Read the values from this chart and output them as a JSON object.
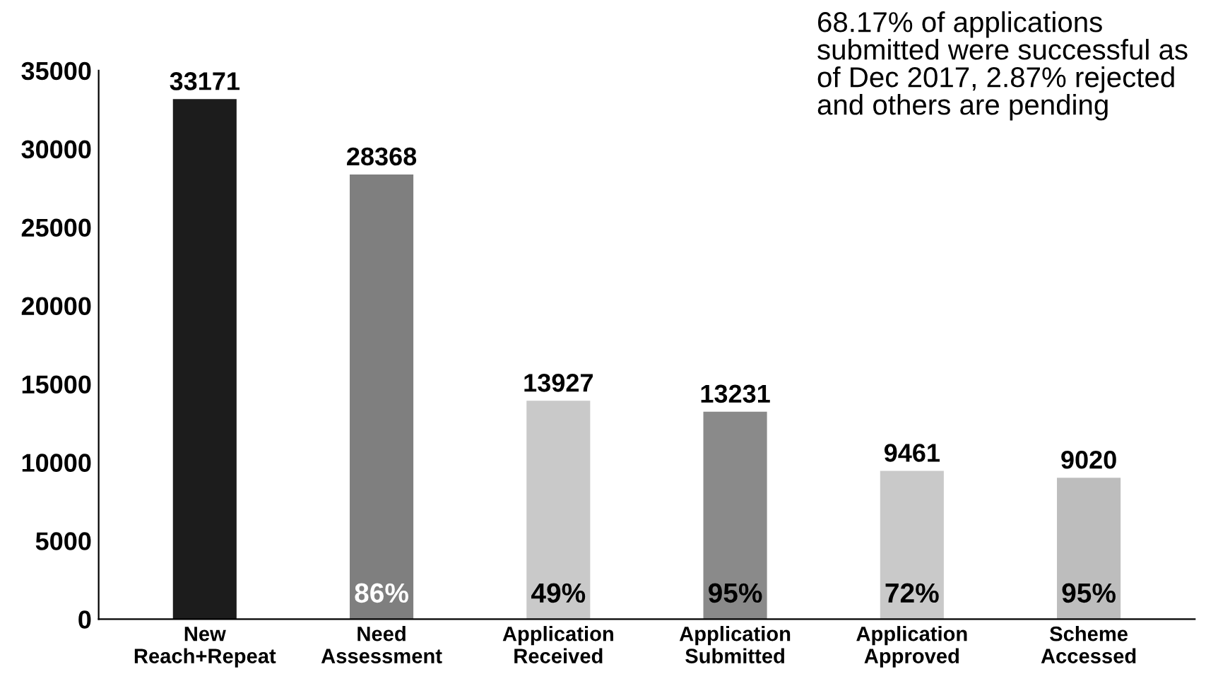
{
  "chart_data": {
    "type": "bar",
    "categories": [
      "New\nReach+Repeat",
      "Need\nAssessment",
      "Application\nReceived",
      "Application\nSubmitted",
      "Application\nApproved",
      "Scheme\nAccessed"
    ],
    "values": [
      33171,
      28368,
      13927,
      13231,
      9461,
      9020
    ],
    "colors": [
      "#1c1c1c",
      "#7f7f7f",
      "#c9c9c9",
      "#8a8a8a",
      "#c9c9c9",
      "#bdbdbd"
    ],
    "ylim": [
      0,
      35000
    ],
    "yticks": [
      0,
      5000,
      10000,
      15000,
      20000,
      25000,
      30000,
      35000
    ],
    "grid": false,
    "legend": false,
    "data_labels": true,
    "annotations": [
      "86%",
      "49%",
      "95%",
      "72%",
      "95%",
      "68.17% of applications\nsubmitted were successful as\nof Dec 2017, 2.87% rejected\nand others are pending"
    ]
  }
}
